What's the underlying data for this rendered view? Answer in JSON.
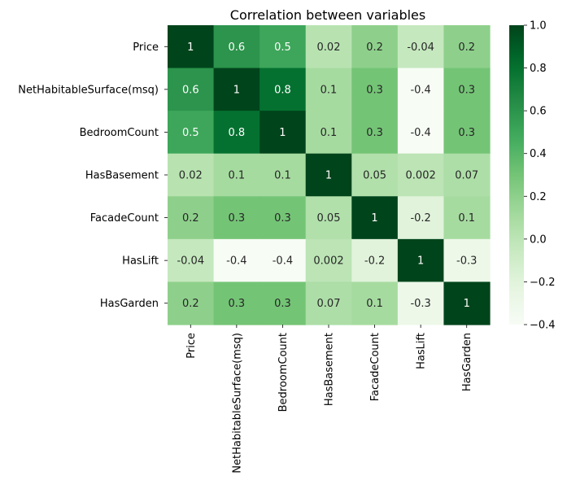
{
  "chart_data": {
    "type": "heatmap",
    "title": "Correlation between variables",
    "row_labels": [
      "Price",
      "NetHabitableSurface(msq)",
      "BedroomCount",
      "HasBasement",
      "FacadeCount",
      "HasLift",
      "HasGarden"
    ],
    "col_labels": [
      "Price",
      "NetHabitableSurface(msq)",
      "BedroomCount",
      "HasBasement",
      "FacadeCount",
      "HasLift",
      "HasGarden"
    ],
    "values": [
      [
        1,
        0.6,
        0.5,
        0.02,
        0.2,
        -0.04,
        0.2
      ],
      [
        0.6,
        1,
        0.8,
        0.1,
        0.3,
        -0.4,
        0.3
      ],
      [
        0.5,
        0.8,
        1,
        0.1,
        0.3,
        -0.4,
        0.3
      ],
      [
        0.02,
        0.1,
        0.1,
        1,
        0.05,
        0.002,
        0.07
      ],
      [
        0.2,
        0.3,
        0.3,
        0.05,
        1,
        -0.2,
        0.1
      ],
      [
        -0.04,
        -0.4,
        -0.4,
        0.002,
        -0.2,
        1,
        -0.3
      ],
      [
        0.2,
        0.3,
        0.3,
        0.07,
        0.1,
        -0.3,
        1
      ]
    ],
    "annotations": [
      [
        "1",
        "0.6",
        "0.5",
        "0.02",
        "0.2",
        "-0.04",
        "0.2"
      ],
      [
        "0.6",
        "1",
        "0.8",
        "0.1",
        "0.3",
        "-0.4",
        "0.3"
      ],
      [
        "0.5",
        "0.8",
        "1",
        "0.1",
        "0.3",
        "-0.4",
        "0.3"
      ],
      [
        "0.02",
        "0.1",
        "0.1",
        "1",
        "0.05",
        "0.002",
        "0.07"
      ],
      [
        "0.2",
        "0.3",
        "0.3",
        "0.05",
        "1",
        "-0.2",
        "0.1"
      ],
      [
        "-0.04",
        "-0.4",
        "-0.4",
        "0.002",
        "-0.2",
        "1",
        "-0.3"
      ],
      [
        "0.2",
        "0.3",
        "0.3",
        "0.07",
        "0.1",
        "-0.3",
        "1"
      ]
    ],
    "colormap": "Greens",
    "colormap_stops": [
      "#f7fcf5",
      "#e5f5e0",
      "#c7e9c0",
      "#a1d99b",
      "#74c476",
      "#41ab5d",
      "#238b45",
      "#006d2c",
      "#00441b"
    ],
    "vmin": -0.4,
    "vmax": 1.0,
    "colorbar": {
      "ticks": [
        1.0,
        0.8,
        0.6,
        0.4,
        0.2,
        0.0,
        -0.2,
        -0.4
      ],
      "tick_labels": [
        "1.0",
        "0.8",
        "0.6",
        "0.4",
        "0.2",
        "0.0",
        "−0.2",
        "−0.4"
      ]
    }
  }
}
